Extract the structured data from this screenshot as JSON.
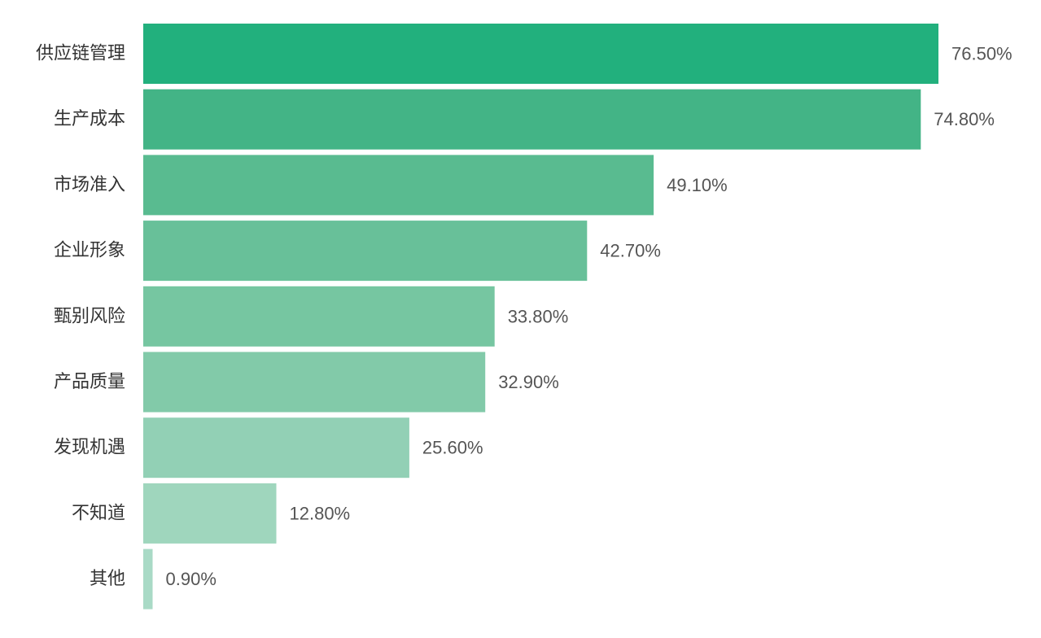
{
  "chart_data": {
    "type": "bar",
    "orientation": "horizontal",
    "title": "",
    "xlabel": "",
    "ylabel": "",
    "xlim": [
      0,
      76.5
    ],
    "categories": [
      "供应链管理",
      "生产成本",
      "市场准入",
      "企业形象",
      "甄别风险",
      "产品质量",
      "发现机遇",
      "不知道",
      "其他"
    ],
    "values": [
      76.5,
      74.8,
      49.1,
      42.7,
      33.8,
      32.9,
      25.6,
      12.8,
      0.9
    ],
    "value_labels": [
      "76.50%",
      "74.80%",
      "49.10%",
      "42.70%",
      "33.80%",
      "32.90%",
      "25.60%",
      "12.80%",
      "0.90%"
    ],
    "colors": [
      "#22b07d",
      "#43b486",
      "#59bb90",
      "#68c099",
      "#76c6a1",
      "#82caa9",
      "#92d0b5",
      "#9fd6bd",
      "#a9dac6"
    ],
    "grid": false,
    "legend": "none"
  }
}
